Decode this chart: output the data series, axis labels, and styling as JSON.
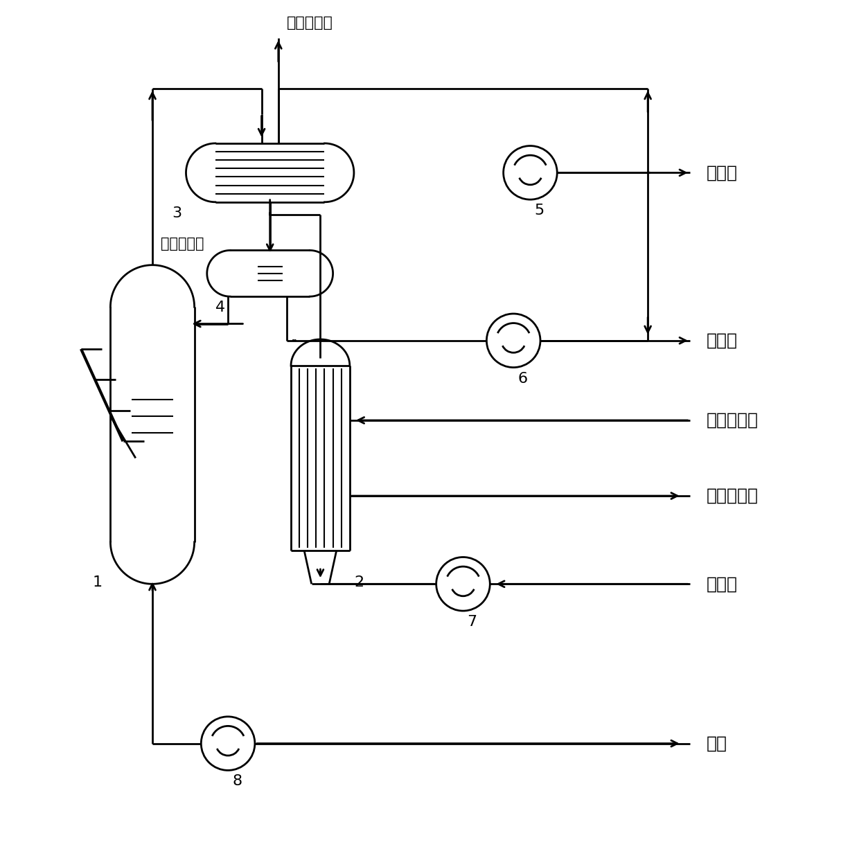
{
  "background_color": "#ffffff",
  "line_color": "#000000",
  "line_width": 2.0,
  "labels": {
    "cooling_water_top": "循环冷却水",
    "cooling_water_left": "循环冷却水",
    "non_condensable": "不凝气",
    "condensate": "冷凝液",
    "low_grade_heat1": "低品位热源",
    "low_grade_heat2": "低品位热源",
    "sulfur_foam": "硫泡沫",
    "sulfur_slurry": "硫浆"
  },
  "equip_nums": [
    "1",
    "2",
    "3",
    "4",
    "5",
    "6",
    "7",
    "8"
  ],
  "font_size": 16,
  "font_size_label": 18
}
